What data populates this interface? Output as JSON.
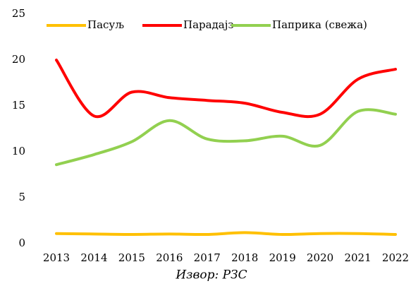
{
  "chart_data": {
    "type": "line",
    "categories": [
      "2013",
      "2014",
      "2015",
      "2016",
      "2017",
      "2018",
      "2019",
      "2020",
      "2021",
      "2022"
    ],
    "series": [
      {
        "name": "Пасуљ",
        "color": "#ffc000",
        "values": [
          1.1,
          1.05,
          1.0,
          1.05,
          1.0,
          1.2,
          1.0,
          1.1,
          1.1,
          1.0
        ]
      },
      {
        "name": "Парадајз",
        "color": "#ff0000",
        "values": [
          20,
          13.9,
          16.5,
          15.9,
          15.6,
          15.3,
          14.3,
          14.1,
          17.9,
          19.0
        ]
      },
      {
        "name": "Паприка (свежа)",
        "color": "#92d050",
        "values": [
          8.6,
          9.7,
          11.1,
          13.4,
          11.4,
          11.2,
          11.7,
          10.7,
          14.4,
          14.1
        ]
      }
    ],
    "ylim": [
      0,
      25
    ],
    "yticks": [
      0,
      5,
      10,
      15,
      20,
      25
    ],
    "grid": false,
    "source": "Извор: РЗС"
  }
}
